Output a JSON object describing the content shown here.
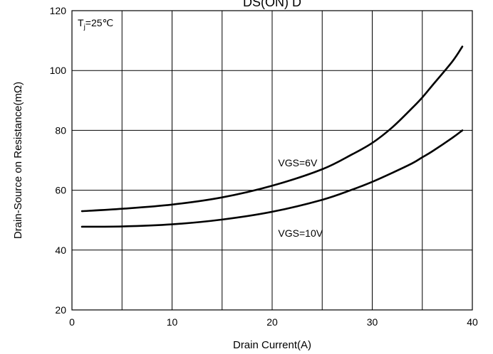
{
  "chart_data": {
    "type": "line",
    "title": "DS(ON) D",
    "xlabel": "Drain Current(A)",
    "ylabel": "Drain-Source on Resistance(mΩ)",
    "xlim": [
      0,
      40
    ],
    "ylim": [
      20,
      120
    ],
    "x_ticks": [
      "0",
      "10",
      "20",
      "30",
      "40"
    ],
    "y_ticks": [
      "20",
      "40",
      "60",
      "80",
      "100",
      "120"
    ],
    "grid": true,
    "annotations": {
      "temperature_main": "T",
      "temperature_sub": "j",
      "temperature_rest": "=25℃"
    },
    "series": [
      {
        "name": "VGS=6V",
        "x": [
          1,
          5,
          10,
          15,
          20,
          25,
          28,
          30,
          32,
          34,
          35,
          36,
          38,
          39
        ],
        "y": [
          53,
          53.8,
          55.2,
          57.6,
          61.5,
          67,
          72,
          75.8,
          81,
          87.5,
          91,
          95,
          103,
          108
        ]
      },
      {
        "name": "VGS=10V",
        "x": [
          1,
          5,
          10,
          15,
          20,
          25,
          28,
          30,
          32,
          34,
          35,
          36,
          38,
          39
        ],
        "y": [
          47.8,
          47.9,
          48.6,
          50.2,
          52.8,
          56.8,
          60.2,
          62.8,
          65.8,
          69,
          71,
          73,
          77.5,
          80
        ]
      }
    ],
    "series_labels": [
      {
        "text": "VGS=6V",
        "x": 20.6,
        "y": 68
      },
      {
        "text": "VGS=10V",
        "x": 20.6,
        "y": 44.5
      }
    ]
  }
}
